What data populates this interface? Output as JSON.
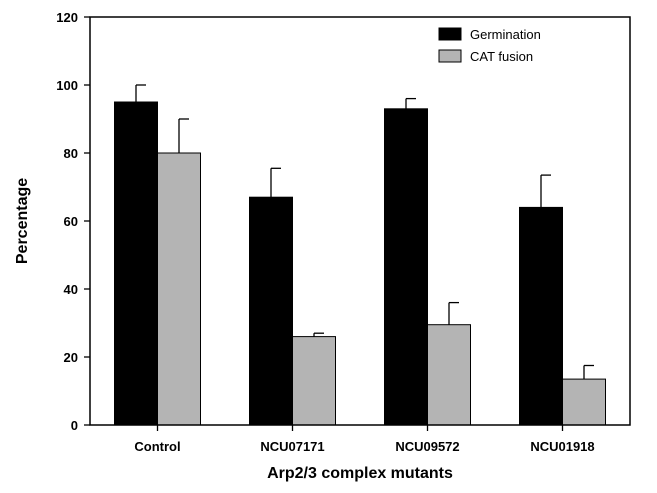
{
  "chart_data": {
    "type": "bar",
    "xlabel": "Arp2/3 complex mutants",
    "ylabel": "Percentage",
    "ylim": [
      0,
      120
    ],
    "yticks": [
      0,
      20,
      40,
      60,
      80,
      100,
      120
    ],
    "categories": [
      "Control",
      "NCU07171",
      "NCU09572",
      "NCU01918"
    ],
    "series": [
      {
        "name": "Germination",
        "color": "#000000",
        "values": [
          95,
          67,
          93,
          64
        ],
        "errors": [
          5,
          8.5,
          3,
          9.5
        ]
      },
      {
        "name": "CAT fusion",
        "color": "#b4b4b4",
        "values": [
          80,
          26,
          29.5,
          13.5
        ],
        "errors": [
          10,
          1,
          6.5,
          4
        ]
      }
    ],
    "legend_position": "top-right",
    "grid": false
  }
}
